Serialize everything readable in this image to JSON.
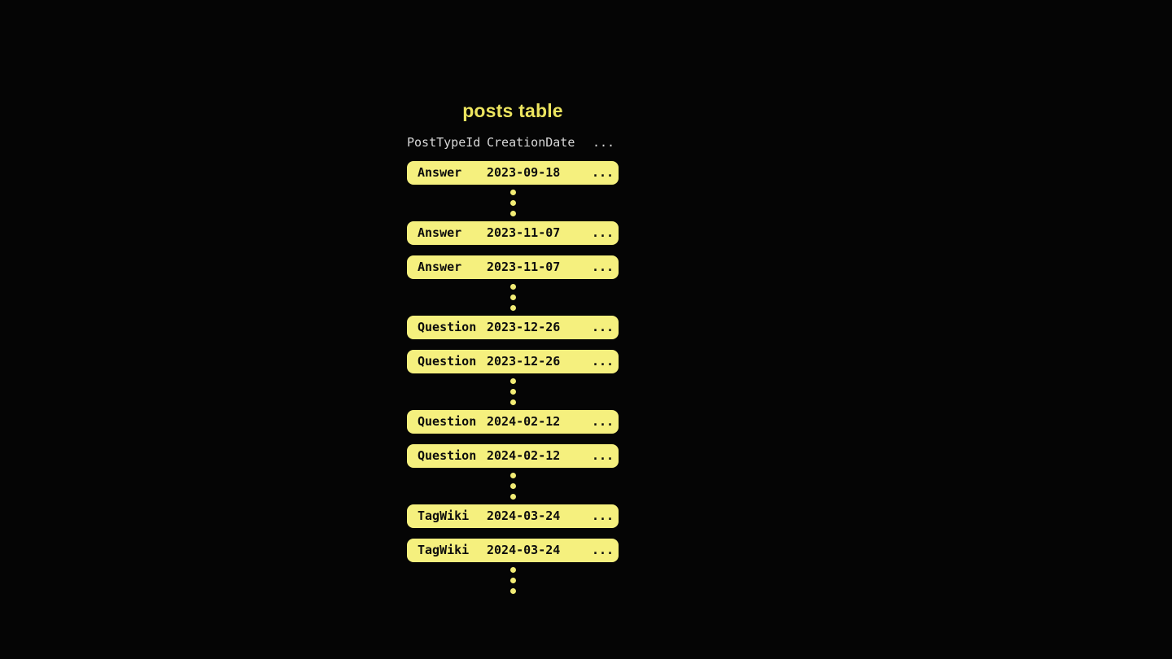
{
  "title": "posts table",
  "colors": {
    "background": "#050505",
    "title_text": "#ece45f",
    "header_text": "#d8d8d8",
    "row_fill": "#f5f07e",
    "row_text": "#0d0d0d",
    "dot_fill": "#f2ec75"
  },
  "table": {
    "headers": [
      "PostTypeId",
      "CreationDate",
      "..."
    ],
    "items": [
      {
        "kind": "row",
        "post_type": "Answer",
        "creation_date": "2023-09-18",
        "more": "..."
      },
      {
        "kind": "ellipsis"
      },
      {
        "kind": "row",
        "post_type": "Answer",
        "creation_date": "2023-11-07",
        "more": "..."
      },
      {
        "kind": "row",
        "post_type": "Answer",
        "creation_date": "2023-11-07",
        "more": "..."
      },
      {
        "kind": "ellipsis"
      },
      {
        "kind": "row",
        "post_type": "Question",
        "creation_date": "2023-12-26",
        "more": "..."
      },
      {
        "kind": "row",
        "post_type": "Question",
        "creation_date": "2023-12-26",
        "more": "..."
      },
      {
        "kind": "ellipsis"
      },
      {
        "kind": "row",
        "post_type": "Question",
        "creation_date": "2024-02-12",
        "more": "..."
      },
      {
        "kind": "row",
        "post_type": "Question",
        "creation_date": "2024-02-12",
        "more": "..."
      },
      {
        "kind": "ellipsis"
      },
      {
        "kind": "row",
        "post_type": "TagWiki",
        "creation_date": "2024-03-24",
        "more": "..."
      },
      {
        "kind": "row",
        "post_type": "TagWiki",
        "creation_date": "2024-03-24",
        "more": "..."
      },
      {
        "kind": "ellipsis"
      }
    ]
  }
}
